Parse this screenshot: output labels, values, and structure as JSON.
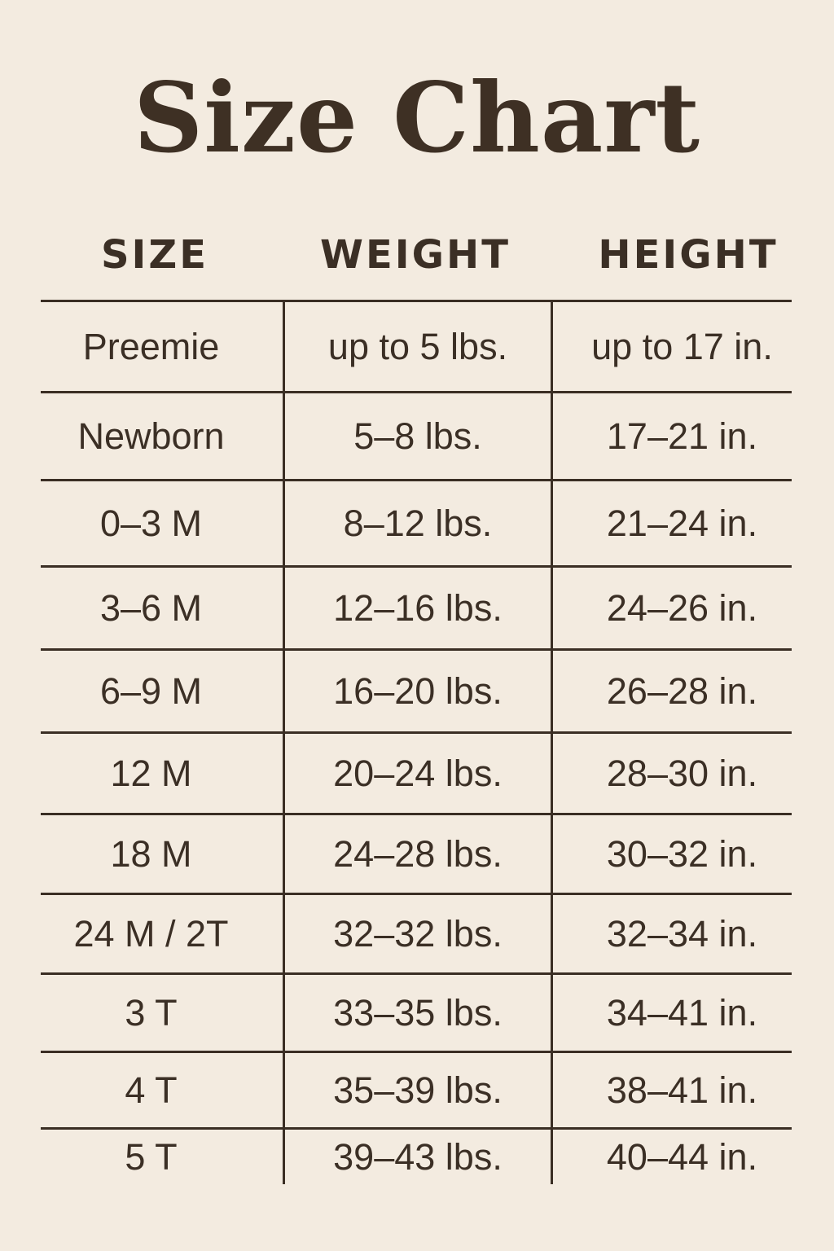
{
  "title": "Size Chart",
  "columns": [
    "SIZE",
    "WEIGHT",
    "HEIGHT"
  ],
  "rows": [
    {
      "size": "Preemie",
      "weight": "up to 5 lbs.",
      "height": "up to 17 in."
    },
    {
      "size": "Newborn",
      "weight": "5–8 lbs.",
      "height": "17–21 in."
    },
    {
      "size": "0–3 M",
      "weight": "8–12 lbs.",
      "height": "21–24 in."
    },
    {
      "size": "3–6 M",
      "weight": "12–16 lbs.",
      "height": "24–26 in."
    },
    {
      "size": "6–9 M",
      "weight": "16–20 lbs.",
      "height": "26–28 in."
    },
    {
      "size": "12 M",
      "weight": "20–24 lbs.",
      "height": "28–30 in."
    },
    {
      "size": "18 M",
      "weight": "24–28 lbs.",
      "height": "30–32 in."
    },
    {
      "size": "24 M / 2T",
      "weight": "32–32 lbs.",
      "height": "32–34 in."
    },
    {
      "size": "3 T",
      "weight": "33–35 lbs.",
      "height": "34–41 in."
    },
    {
      "size": "4 T",
      "weight": "35–39 lbs.",
      "height": "38–41 in."
    },
    {
      "size": "5 T",
      "weight": "39–43 lbs.",
      "height": "40–44 in."
    }
  ],
  "colors": {
    "background": "#f3ebe0",
    "text": "#3b2f25",
    "lines": "#3a2e24"
  }
}
